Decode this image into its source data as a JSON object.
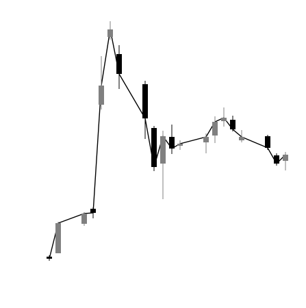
{
  "chart_data": {
    "type": "candlestick",
    "title": "",
    "xlabel": "",
    "ylabel": "",
    "axes_visible": false,
    "grid": false,
    "legend": "none",
    "ylim": [
      0,
      450
    ],
    "colors": {
      "up": "#808080",
      "down": "#000000",
      "line": "#000000",
      "background": "#ffffff"
    },
    "candles": [
      {
        "x": 72,
        "open": 75,
        "close": 72,
        "high": 77,
        "low": 69
      },
      {
        "x": 85,
        "open": 80,
        "close": 124,
        "high": 126,
        "low": 80
      },
      {
        "x": 123,
        "open": 123,
        "close": 138,
        "high": 140,
        "low": 120
      },
      {
        "x": 136,
        "open": 145,
        "close": 139,
        "high": 147,
        "low": 131
      },
      {
        "x": 148,
        "open": 297,
        "close": 325,
        "high": 368,
        "low": 290
      },
      {
        "x": 161,
        "open": 396,
        "close": 407,
        "high": 419,
        "low": 392
      },
      {
        "x": 174,
        "open": 371,
        "close": 342,
        "high": 384,
        "low": 320
      },
      {
        "x": 212,
        "open": 327,
        "close": 277,
        "high": 332,
        "low": 247
      },
      {
        "x": 225,
        "open": 263,
        "close": 206,
        "high": 266,
        "low": 200
      },
      {
        "x": 238,
        "open": 211,
        "close": 251,
        "high": 259,
        "low": 159
      },
      {
        "x": 251,
        "open": 250,
        "close": 233,
        "high": 268,
        "low": 225
      },
      {
        "x": 263,
        "open": 237,
        "close": 240,
        "high": 245,
        "low": 231
      },
      {
        "x": 301,
        "open": 242,
        "close": 250,
        "high": 255,
        "low": 226
      },
      {
        "x": 314,
        "open": 252,
        "close": 272,
        "high": 280,
        "low": 241
      },
      {
        "x": 327,
        "open": 273,
        "close": 278,
        "high": 293,
        "low": 265
      },
      {
        "x": 340,
        "open": 275,
        "close": 261,
        "high": 281,
        "low": 258
      },
      {
        "x": 353,
        "open": 245,
        "close": 250,
        "high": 260,
        "low": 242
      },
      {
        "x": 391,
        "open": 251,
        "close": 234,
        "high": 253,
        "low": 231
      },
      {
        "x": 404,
        "open": 223,
        "close": 211,
        "high": 226,
        "low": 208
      },
      {
        "x": 417,
        "open": 215,
        "close": 224,
        "high": 228,
        "low": 201
      }
    ]
  }
}
